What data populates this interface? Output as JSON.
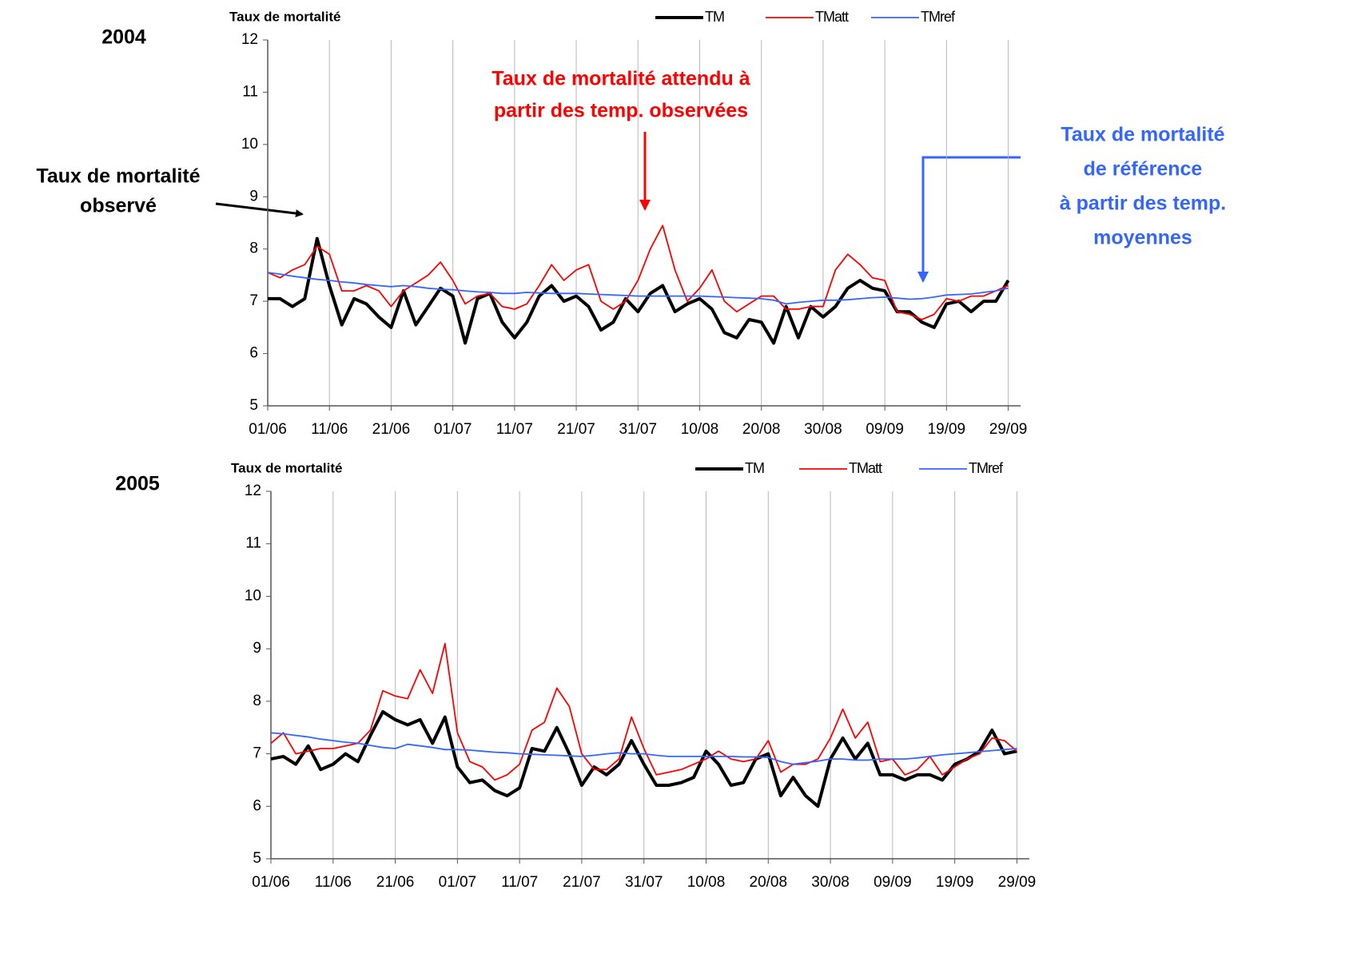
{
  "chart_data": [
    {
      "type": "line",
      "label": "2004",
      "title": "Taux de mortalité",
      "grid": "x",
      "legend": "top-right",
      "x": [
        0,
        2,
        4,
        6,
        8,
        10,
        12,
        14,
        16,
        18,
        20,
        22,
        24,
        26,
        28,
        30,
        32,
        34,
        36,
        38,
        40,
        42,
        44,
        46,
        48,
        50,
        52,
        54,
        56,
        58,
        60,
        62,
        64,
        66,
        68,
        70,
        72,
        74,
        76,
        78,
        80,
        82,
        84,
        86,
        88,
        90,
        92,
        94,
        96,
        98,
        100,
        102,
        104,
        106,
        108,
        110,
        112,
        114,
        116,
        118,
        120
      ],
      "xlim": [
        0,
        122
      ],
      "xticks": [
        {
          "value": 0,
          "label": "01/06"
        },
        {
          "value": 10,
          "label": "11/06"
        },
        {
          "value": 20,
          "label": "21/06"
        },
        {
          "value": 30,
          "label": "01/07"
        },
        {
          "value": 40,
          "label": "11/07"
        },
        {
          "value": 50,
          "label": "21/07"
        },
        {
          "value": 60,
          "label": "31/07"
        },
        {
          "value": 70,
          "label": "10/08"
        },
        {
          "value": 80,
          "label": "20/08"
        },
        {
          "value": 90,
          "label": "30/08"
        },
        {
          "value": 100,
          "label": "09/09"
        },
        {
          "value": 110,
          "label": "19/09"
        },
        {
          "value": 120,
          "label": "29/09"
        }
      ],
      "ylim": [
        5,
        12
      ],
      "yticks": [
        5,
        6,
        7,
        8,
        9,
        10,
        11,
        12
      ],
      "series": [
        {
          "name": "TM",
          "color": "#000000",
          "values": [
            7.05,
            7.05,
            6.9,
            7.05,
            8.2,
            7.3,
            6.55,
            7.05,
            6.95,
            6.7,
            6.5,
            7.2,
            6.55,
            6.9,
            7.25,
            7.1,
            6.2,
            7.05,
            7.15,
            6.6,
            6.3,
            6.6,
            7.1,
            7.3,
            7.0,
            7.1,
            6.9,
            6.45,
            6.6,
            7.05,
            6.8,
            7.15,
            7.3,
            6.8,
            6.95,
            7.05,
            6.85,
            6.4,
            6.3,
            6.65,
            6.6,
            6.2,
            6.9,
            6.3,
            6.9,
            6.7,
            6.9,
            7.25,
            7.4,
            7.25,
            7.2,
            6.8,
            6.8,
            6.6,
            6.5,
            6.95,
            7.0,
            6.8,
            7.0,
            7.0,
            7.4
          ]
        },
        {
          "name": "TMatt",
          "color": "#ff0000",
          "values": [
            7.55,
            7.45,
            7.6,
            7.7,
            8.05,
            7.9,
            7.2,
            7.2,
            7.3,
            7.2,
            6.9,
            7.2,
            7.35,
            7.5,
            7.75,
            7.4,
            6.95,
            7.1,
            7.15,
            6.9,
            6.85,
            6.95,
            7.3,
            7.7,
            7.4,
            7.6,
            7.7,
            7.0,
            6.85,
            7.0,
            7.4,
            8.0,
            8.45,
            7.6,
            7.0,
            7.25,
            7.6,
            7.0,
            6.8,
            6.95,
            7.1,
            7.1,
            6.85,
            6.85,
            6.9,
            6.9,
            7.6,
            7.9,
            7.7,
            7.45,
            7.4,
            6.8,
            6.75,
            6.65,
            6.75,
            7.05,
            7.0,
            7.1,
            7.1,
            7.2,
            7.3
          ]
        },
        {
          "name": "TMref",
          "color": "#3366ff",
          "values": [
            7.55,
            7.52,
            7.48,
            7.45,
            7.42,
            7.4,
            7.37,
            7.35,
            7.32,
            7.3,
            7.28,
            7.3,
            7.28,
            7.25,
            7.23,
            7.22,
            7.2,
            7.18,
            7.17,
            7.15,
            7.15,
            7.17,
            7.16,
            7.15,
            7.15,
            7.15,
            7.14,
            7.13,
            7.12,
            7.11,
            7.1,
            7.1,
            7.1,
            7.1,
            7.1,
            7.1,
            7.09,
            7.08,
            7.07,
            7.06,
            7.05,
            7.02,
            6.95,
            6.98,
            7.0,
            7.02,
            7.02,
            7.03,
            7.05,
            7.07,
            7.08,
            7.06,
            7.04,
            7.05,
            7.08,
            7.12,
            7.13,
            7.14,
            7.17,
            7.2,
            7.25
          ]
        }
      ],
      "annotations": [
        {
          "text": [
            "Taux de mortalité attendu à",
            "partir des temp. observées"
          ],
          "color": "#ff0000"
        },
        {
          "text": [
            "Taux de mortalité",
            "de référence",
            "à partir des temp.",
            "moyennes"
          ],
          "color": "#3366ff"
        },
        {
          "text": [
            "Taux de mortalité",
            "observé"
          ],
          "color": "#000000"
        }
      ]
    },
    {
      "type": "line",
      "label": "2005",
      "title": "Taux de mortalité",
      "grid": "x",
      "legend": "top-right",
      "x": [
        0,
        2,
        4,
        6,
        8,
        10,
        12,
        14,
        16,
        18,
        20,
        22,
        24,
        26,
        28,
        30,
        32,
        34,
        36,
        38,
        40,
        42,
        44,
        46,
        48,
        50,
        52,
        54,
        56,
        58,
        60,
        62,
        64,
        66,
        68,
        70,
        72,
        74,
        76,
        78,
        80,
        82,
        84,
        86,
        88,
        90,
        92,
        94,
        96,
        98,
        100,
        102,
        104,
        106,
        108,
        110,
        112,
        114,
        116,
        118,
        120
      ],
      "xlim": [
        0,
        122
      ],
      "xticks": [
        {
          "value": 0,
          "label": "01/06"
        },
        {
          "value": 10,
          "label": "11/06"
        },
        {
          "value": 20,
          "label": "21/06"
        },
        {
          "value": 30,
          "label": "01/07"
        },
        {
          "value": 40,
          "label": "11/07"
        },
        {
          "value": 50,
          "label": "21/07"
        },
        {
          "value": 60,
          "label": "31/07"
        },
        {
          "value": 70,
          "label": "10/08"
        },
        {
          "value": 80,
          "label": "20/08"
        },
        {
          "value": 90,
          "label": "30/08"
        },
        {
          "value": 100,
          "label": "09/09"
        },
        {
          "value": 110,
          "label": "19/09"
        },
        {
          "value": 120,
          "label": "29/09"
        }
      ],
      "ylim": [
        5,
        12
      ],
      "yticks": [
        5,
        6,
        7,
        8,
        9,
        10,
        11,
        12
      ],
      "series": [
        {
          "name": "TM",
          "color": "#000000",
          "values": [
            6.9,
            6.95,
            6.8,
            7.15,
            6.7,
            6.8,
            7.0,
            6.85,
            7.35,
            7.8,
            7.65,
            7.55,
            7.65,
            7.2,
            7.7,
            6.75,
            6.45,
            6.5,
            6.3,
            6.2,
            6.35,
            7.1,
            7.05,
            7.5,
            7.0,
            6.4,
            6.75,
            6.6,
            6.8,
            7.25,
            6.8,
            6.4,
            6.4,
            6.45,
            6.55,
            7.05,
            6.8,
            6.4,
            6.45,
            6.9,
            7.0,
            6.2,
            6.55,
            6.2,
            6.0,
            6.9,
            7.3,
            6.9,
            7.2,
            6.6,
            6.6,
            6.5,
            6.6,
            6.6,
            6.5,
            6.8,
            6.9,
            7.05,
            7.45,
            7.0,
            7.05
          ]
        },
        {
          "name": "TMatt",
          "color": "#ff0000",
          "values": [
            7.2,
            7.4,
            7.0,
            7.05,
            7.1,
            7.1,
            7.15,
            7.2,
            7.45,
            8.2,
            8.1,
            8.05,
            8.6,
            8.15,
            9.1,
            7.4,
            6.85,
            6.75,
            6.5,
            6.6,
            6.8,
            7.45,
            7.6,
            8.25,
            7.9,
            7.0,
            6.7,
            6.7,
            6.9,
            7.7,
            7.1,
            6.6,
            6.65,
            6.7,
            6.8,
            6.9,
            7.05,
            6.9,
            6.85,
            6.9,
            7.25,
            6.65,
            6.8,
            6.8,
            6.9,
            7.3,
            7.85,
            7.3,
            7.6,
            6.85,
            6.9,
            6.6,
            6.7,
            6.95,
            6.6,
            6.75,
            6.9,
            7.0,
            7.3,
            7.25,
            7.05
          ]
        },
        {
          "name": "TMref",
          "color": "#3366ff",
          "values": [
            7.4,
            7.38,
            7.35,
            7.32,
            7.28,
            7.25,
            7.22,
            7.2,
            7.16,
            7.12,
            7.1,
            7.18,
            7.15,
            7.12,
            7.08,
            7.08,
            7.07,
            7.05,
            7.03,
            7.02,
            7.0,
            6.99,
            6.98,
            6.97,
            6.96,
            6.95,
            6.97,
            7.0,
            7.02,
            7.0,
            7.0,
            6.97,
            6.95,
            6.95,
            6.95,
            6.95,
            6.95,
            6.95,
            6.94,
            6.94,
            6.93,
            6.85,
            6.8,
            6.83,
            6.86,
            6.9,
            6.9,
            6.88,
            6.88,
            6.9,
            6.9,
            6.9,
            6.92,
            6.95,
            6.98,
            7.0,
            7.02,
            7.04,
            7.06,
            7.08,
            7.1
          ]
        }
      ]
    }
  ]
}
